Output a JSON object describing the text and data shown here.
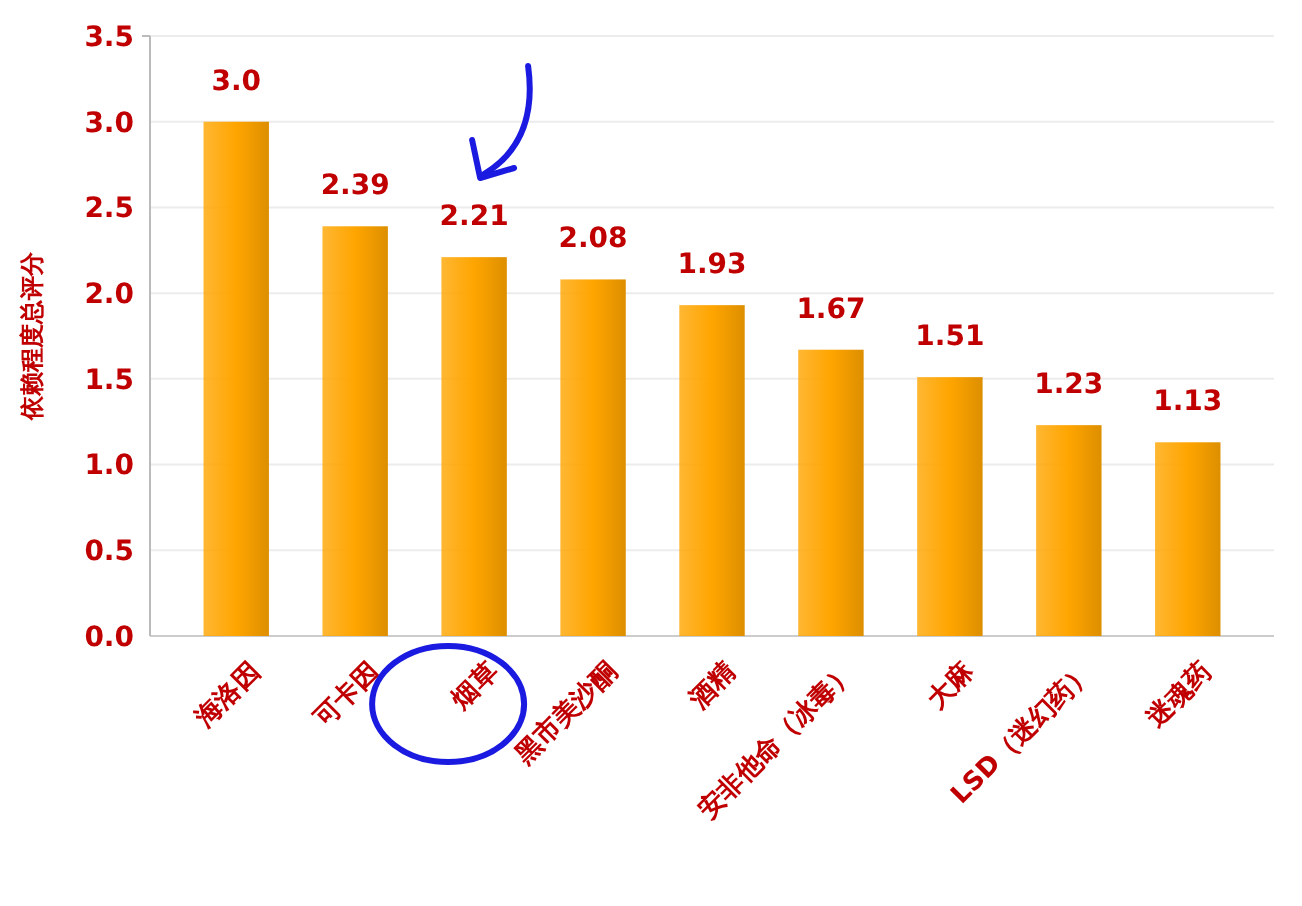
{
  "chart_data": {
    "type": "bar",
    "ylabel": "依赖程度总评分",
    "categories": [
      "海洛因",
      "可卡因",
      "烟草",
      "黑市美沙酮",
      "酒精",
      "安非他命（冰毒）",
      "大麻",
      "LSD（迷幻药）",
      "迷魂药"
    ],
    "values": [
      3.0,
      2.39,
      2.21,
      2.08,
      1.93,
      1.67,
      1.51,
      1.23,
      1.13
    ],
    "value_labels": [
      "3.0",
      "2.39",
      "2.21",
      "2.08",
      "1.93",
      "1.67",
      "1.51",
      "1.23",
      "1.13"
    ],
    "color": "#ffa500",
    "ylim": [
      0,
      3.5
    ],
    "yticks": [
      "0.0",
      "0.5",
      "1.0",
      "1.5",
      "2.0",
      "2.5",
      "3.0",
      "3.5"
    ],
    "grid": "y"
  }
}
